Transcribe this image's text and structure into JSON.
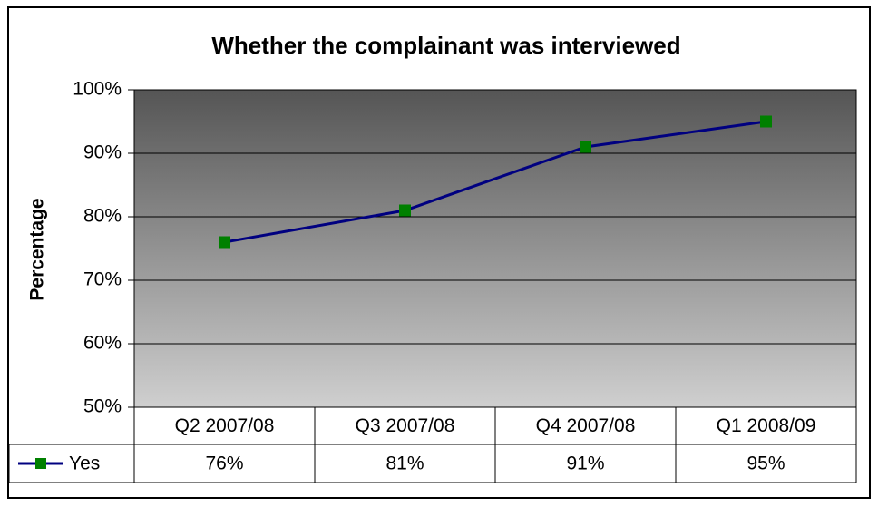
{
  "chart_data": {
    "type": "line",
    "title": "Whether the complainant was interviewed",
    "y_label": "Percentage",
    "categories": [
      "Q2 2007/08",
      "Q3 2007/08",
      "Q4 2007/08",
      "Q1 2008/09"
    ],
    "series": [
      {
        "name": "Yes",
        "color": "#000080",
        "marker_color": "#008000",
        "values": [
          76,
          81,
          91,
          95
        ],
        "value_labels": [
          "76%",
          "81%",
          "91%",
          "95%"
        ]
      }
    ],
    "ylim": [
      50,
      100
    ],
    "yticks": [
      {
        "value": 50,
        "label": "50%"
      },
      {
        "value": 60,
        "label": "60%"
      },
      {
        "value": 70,
        "label": "70%"
      },
      {
        "value": 80,
        "label": "80%"
      },
      {
        "value": 90,
        "label": "90%"
      },
      {
        "value": 100,
        "label": "100%"
      }
    ],
    "grid": true
  }
}
